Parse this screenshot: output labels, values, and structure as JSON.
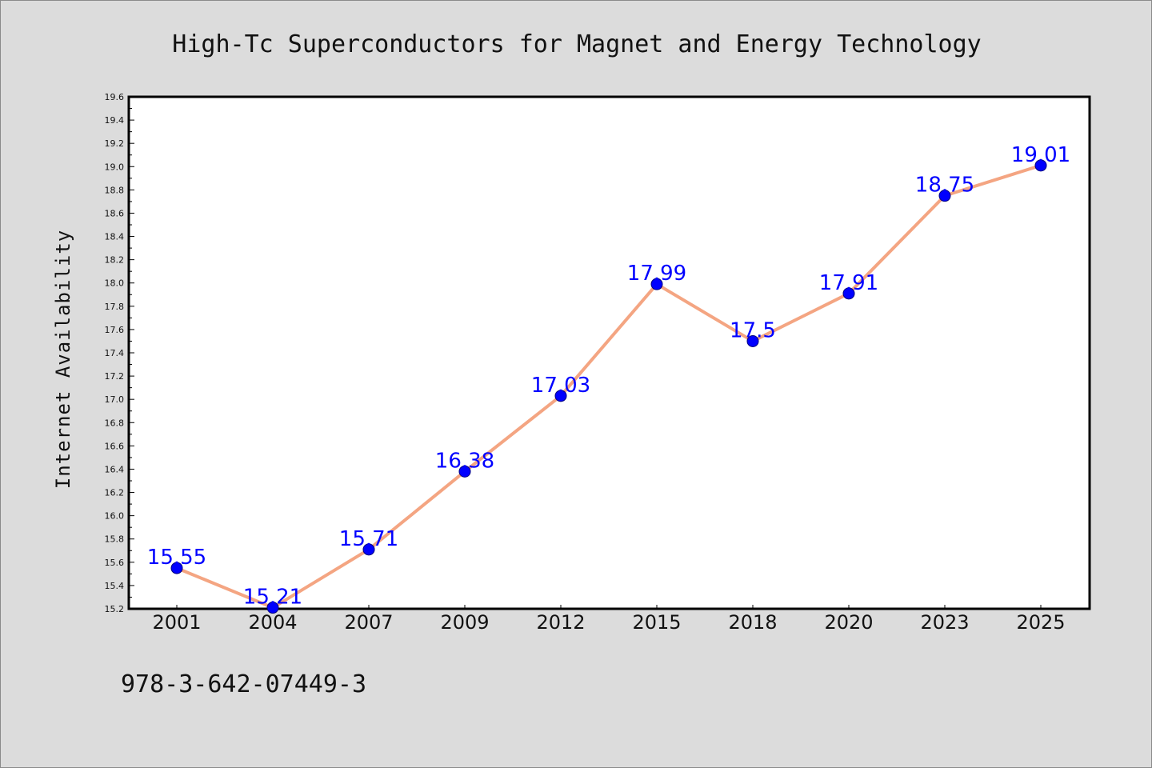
{
  "chart_data": {
    "type": "line",
    "title": "High-Tc Superconductors for Magnet and Energy Technology",
    "xlabel": "",
    "ylabel": "Internet Availability",
    "categories": [
      "2001",
      "2004",
      "2007",
      "2009",
      "2012",
      "2015",
      "2018",
      "2020",
      "2023",
      "2025"
    ],
    "series": [
      {
        "values": [
          15.55,
          15.21,
          15.71,
          16.38,
          17.03,
          17.99,
          17.5,
          17.91,
          18.75,
          19.01
        ],
        "labels": [
          "15.55",
          "15.21",
          "15.71",
          "16.38",
          "17.03",
          "17.99",
          "17.5",
          "17.91",
          "18.75",
          "19.01"
        ],
        "line_color": "#f4a582",
        "marker_color": "#0000ff",
        "label_color": "#0000ff"
      }
    ],
    "ylim": [
      15.2,
      19.6
    ],
    "yticks": [
      "15.2",
      "15.4",
      "15.6",
      "15.8",
      "16.0",
      "16.2",
      "16.4",
      "16.6",
      "16.8",
      "17.0",
      "17.2",
      "17.4",
      "17.6",
      "17.8",
      "18.0",
      "18.2",
      "18.4",
      "18.6",
      "18.8",
      "19.0",
      "19.2",
      "19.4",
      "19.6"
    ],
    "grid": false,
    "legend": "none"
  },
  "footer": {
    "isbn": "978-3-642-07449-3"
  },
  "colors": {
    "background": "#dcdcdc",
    "plot_background": "#ffffff",
    "axis": "#000000"
  }
}
